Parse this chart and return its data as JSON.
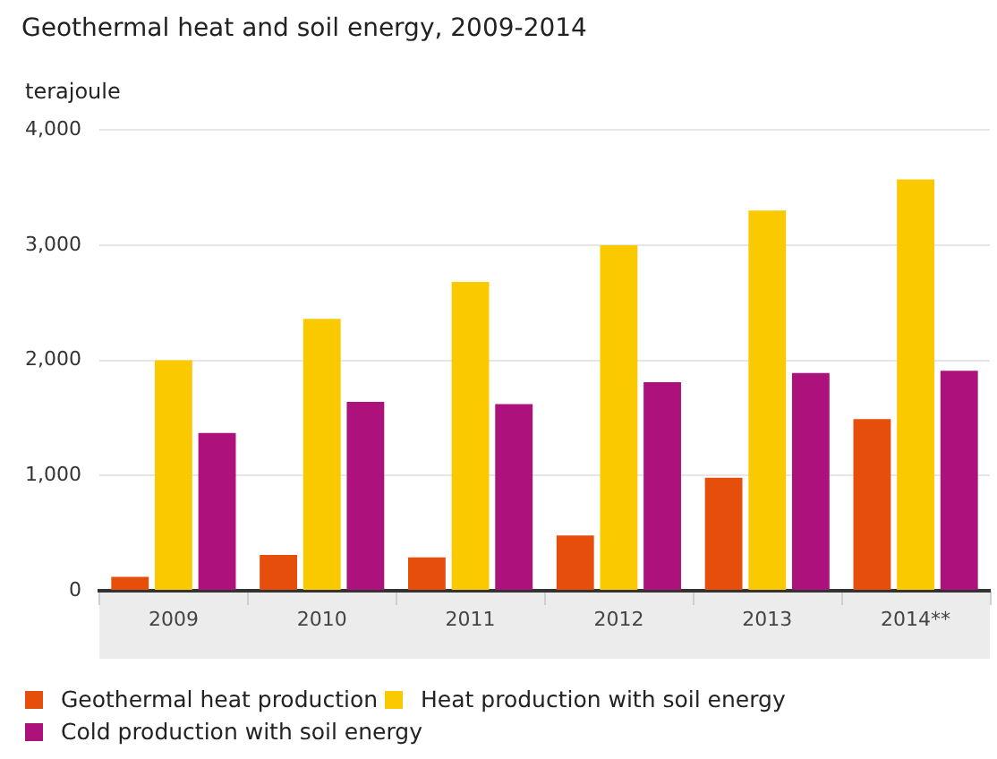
{
  "chart_data": {
    "type": "bar",
    "title": "Geothermal heat and soil energy, 2009-2014",
    "ylabel": "terajoule",
    "categories": [
      "2009",
      "2010",
      "2011",
      "2012",
      "2013",
      "2014**"
    ],
    "series": [
      {
        "name": "Geothermal heat production",
        "color": "#e64e0c",
        "values": [
          120,
          310,
          290,
          480,
          980,
          1490
        ]
      },
      {
        "name": "Heat production with soil energy",
        "color": "#fbc900",
        "values": [
          2000,
          2360,
          2680,
          3000,
          3300,
          3570
        ]
      },
      {
        "name": "Cold production with soil energy",
        "color": "#ac117c",
        "values": [
          1370,
          1640,
          1620,
          1810,
          1890,
          1910
        ]
      }
    ],
    "ylim": [
      0,
      4000
    ],
    "yticks": [
      {
        "value": 0,
        "label": "0"
      },
      {
        "value": 1000,
        "label": "1,000"
      },
      {
        "value": 2000,
        "label": "2,000"
      },
      {
        "value": 3000,
        "label": "3,000"
      },
      {
        "value": 4000,
        "label": "4,000"
      }
    ],
    "grid": "y",
    "legend": "bottom"
  }
}
